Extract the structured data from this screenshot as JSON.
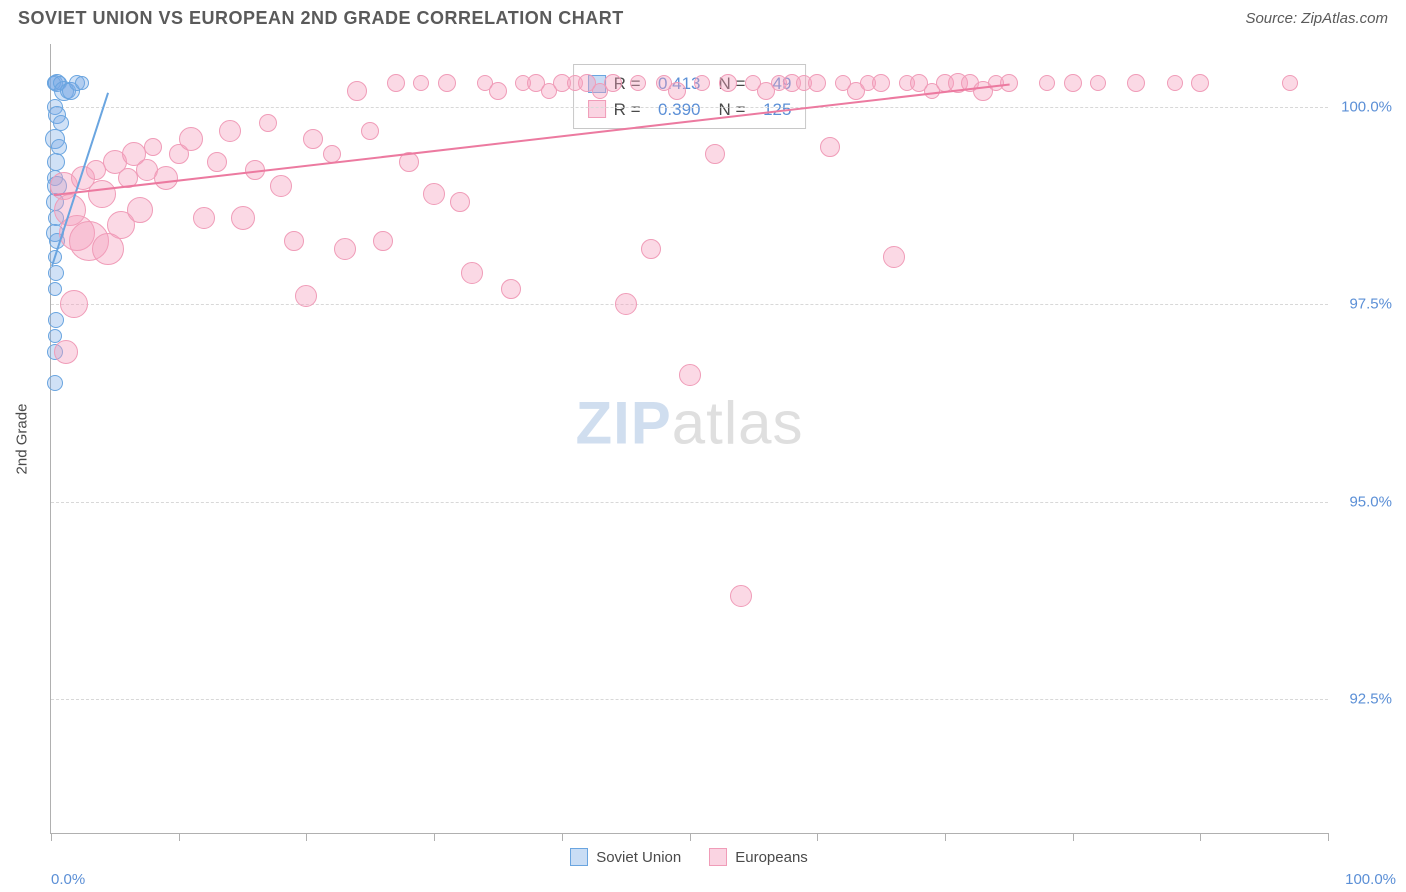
{
  "header": {
    "title": "SOVIET UNION VS EUROPEAN 2ND GRADE CORRELATION CHART",
    "source": "Source: ZipAtlas.com"
  },
  "chart": {
    "type": "scatter",
    "y_axis_label": "2nd Grade",
    "xlim": [
      0,
      100
    ],
    "ylim": [
      90.8,
      100.8
    ],
    "x_end_labels": [
      "0.0%",
      "100.0%"
    ],
    "x_tick_positions": [
      0,
      10,
      20,
      30,
      40,
      50,
      60,
      70,
      80,
      90,
      100
    ],
    "y_ticks": [
      {
        "v": 92.5,
        "label": "92.5%"
      },
      {
        "v": 95.0,
        "label": "95.0%"
      },
      {
        "v": 97.5,
        "label": "97.5%"
      },
      {
        "v": 100.0,
        "label": "100.0%"
      }
    ],
    "background_color": "#ffffff",
    "grid_color": "#d8d8d8",
    "axis_color": "#b0b0b0",
    "tick_label_color": "#5b8fd6",
    "series": [
      {
        "name": "Soviet Union",
        "fill": "rgba(120,170,230,0.35)",
        "stroke": "#6aa5e0",
        "trend_color": "#6aa5e0",
        "trend": {
          "x1": 0.1,
          "y1": 98.0,
          "x2": 4.5,
          "y2": 100.2
        },
        "points": [
          {
            "x": 0.2,
            "y": 100.3,
            "r": 7
          },
          {
            "x": 0.3,
            "y": 100.3,
            "r": 8
          },
          {
            "x": 0.5,
            "y": 100.3,
            "r": 9
          },
          {
            "x": 0.7,
            "y": 100.3,
            "r": 7
          },
          {
            "x": 1.0,
            "y": 100.2,
            "r": 10
          },
          {
            "x": 1.3,
            "y": 100.2,
            "r": 8
          },
          {
            "x": 1.6,
            "y": 100.2,
            "r": 9
          },
          {
            "x": 2.0,
            "y": 100.3,
            "r": 8
          },
          {
            "x": 2.4,
            "y": 100.3,
            "r": 7
          },
          {
            "x": 0.3,
            "y": 100.0,
            "r": 8
          },
          {
            "x": 0.5,
            "y": 99.9,
            "r": 9
          },
          {
            "x": 0.8,
            "y": 99.8,
            "r": 8
          },
          {
            "x": 0.3,
            "y": 99.6,
            "r": 10
          },
          {
            "x": 0.6,
            "y": 99.5,
            "r": 8
          },
          {
            "x": 0.4,
            "y": 99.3,
            "r": 9
          },
          {
            "x": 0.3,
            "y": 99.1,
            "r": 8
          },
          {
            "x": 0.5,
            "y": 99.0,
            "r": 10
          },
          {
            "x": 0.3,
            "y": 98.8,
            "r": 9
          },
          {
            "x": 0.4,
            "y": 98.6,
            "r": 8
          },
          {
            "x": 0.3,
            "y": 98.4,
            "r": 9
          },
          {
            "x": 0.5,
            "y": 98.3,
            "r": 8
          },
          {
            "x": 0.3,
            "y": 98.1,
            "r": 7
          },
          {
            "x": 0.4,
            "y": 97.9,
            "r": 8
          },
          {
            "x": 0.3,
            "y": 97.7,
            "r": 7
          },
          {
            "x": 0.4,
            "y": 97.3,
            "r": 8
          },
          {
            "x": 0.3,
            "y": 97.1,
            "r": 7
          },
          {
            "x": 0.3,
            "y": 96.9,
            "r": 8
          },
          {
            "x": 0.3,
            "y": 96.5,
            "r": 8
          }
        ]
      },
      {
        "name": "Europeans",
        "fill": "rgba(245,160,190,0.4)",
        "stroke": "#f09cb8",
        "trend_color": "#ec7aa0",
        "trend": {
          "x1": 0.2,
          "y1": 98.9,
          "x2": 75,
          "y2": 100.3
        },
        "points": [
          {
            "x": 1.0,
            "y": 99.0,
            "r": 14
          },
          {
            "x": 1.5,
            "y": 98.7,
            "r": 16
          },
          {
            "x": 2.0,
            "y": 98.4,
            "r": 18
          },
          {
            "x": 2.5,
            "y": 99.1,
            "r": 12
          },
          {
            "x": 3.0,
            "y": 98.3,
            "r": 20
          },
          {
            "x": 3.5,
            "y": 99.2,
            "r": 10
          },
          {
            "x": 4.0,
            "y": 98.9,
            "r": 14
          },
          {
            "x": 4.5,
            "y": 98.2,
            "r": 16
          },
          {
            "x": 5.0,
            "y": 99.3,
            "r": 12
          },
          {
            "x": 5.5,
            "y": 98.5,
            "r": 14
          },
          {
            "x": 6.0,
            "y": 99.1,
            "r": 10
          },
          {
            "x": 6.5,
            "y": 99.4,
            "r": 12
          },
          {
            "x": 7.0,
            "y": 98.7,
            "r": 13
          },
          {
            "x": 7.5,
            "y": 99.2,
            "r": 11
          },
          {
            "x": 8.0,
            "y": 99.5,
            "r": 9
          },
          {
            "x": 9.0,
            "y": 99.1,
            "r": 12
          },
          {
            "x": 10.0,
            "y": 99.4,
            "r": 10
          },
          {
            "x": 11.0,
            "y": 99.6,
            "r": 12
          },
          {
            "x": 12.0,
            "y": 98.6,
            "r": 11
          },
          {
            "x": 13.0,
            "y": 99.3,
            "r": 10
          },
          {
            "x": 14.0,
            "y": 99.7,
            "r": 11
          },
          {
            "x": 15.0,
            "y": 98.6,
            "r": 12
          },
          {
            "x": 16.0,
            "y": 99.2,
            "r": 10
          },
          {
            "x": 17.0,
            "y": 99.8,
            "r": 9
          },
          {
            "x": 18.0,
            "y": 99.0,
            "r": 11
          },
          {
            "x": 19.0,
            "y": 98.3,
            "r": 10
          },
          {
            "x": 20.0,
            "y": 97.6,
            "r": 11
          },
          {
            "x": 20.5,
            "y": 99.6,
            "r": 10
          },
          {
            "x": 22.0,
            "y": 99.4,
            "r": 9
          },
          {
            "x": 23.0,
            "y": 98.2,
            "r": 11
          },
          {
            "x": 24.0,
            "y": 100.2,
            "r": 10
          },
          {
            "x": 25.0,
            "y": 99.7,
            "r": 9
          },
          {
            "x": 26.0,
            "y": 98.3,
            "r": 10
          },
          {
            "x": 27.0,
            "y": 100.3,
            "r": 9
          },
          {
            "x": 28.0,
            "y": 99.3,
            "r": 10
          },
          {
            "x": 29.0,
            "y": 100.3,
            "r": 8
          },
          {
            "x": 30.0,
            "y": 98.9,
            "r": 11
          },
          {
            "x": 31.0,
            "y": 100.3,
            "r": 9
          },
          {
            "x": 32.0,
            "y": 98.8,
            "r": 10
          },
          {
            "x": 33.0,
            "y": 97.9,
            "r": 11
          },
          {
            "x": 34.0,
            "y": 100.3,
            "r": 8
          },
          {
            "x": 35.0,
            "y": 100.2,
            "r": 9
          },
          {
            "x": 36.0,
            "y": 97.7,
            "r": 10
          },
          {
            "x": 37.0,
            "y": 100.3,
            "r": 8
          },
          {
            "x": 38.0,
            "y": 100.3,
            "r": 9
          },
          {
            "x": 39.0,
            "y": 100.2,
            "r": 8
          },
          {
            "x": 40.0,
            "y": 100.3,
            "r": 9
          },
          {
            "x": 41.0,
            "y": 100.3,
            "r": 8
          },
          {
            "x": 42.0,
            "y": 100.3,
            "r": 9
          },
          {
            "x": 43.0,
            "y": 100.2,
            "r": 8
          },
          {
            "x": 44.0,
            "y": 100.3,
            "r": 9
          },
          {
            "x": 45.0,
            "y": 97.5,
            "r": 11
          },
          {
            "x": 46.0,
            "y": 100.3,
            "r": 8
          },
          {
            "x": 47.0,
            "y": 98.2,
            "r": 10
          },
          {
            "x": 48.0,
            "y": 100.3,
            "r": 8
          },
          {
            "x": 49.0,
            "y": 100.2,
            "r": 9
          },
          {
            "x": 50.0,
            "y": 96.6,
            "r": 11
          },
          {
            "x": 51.0,
            "y": 100.3,
            "r": 8
          },
          {
            "x": 52.0,
            "y": 99.4,
            "r": 10
          },
          {
            "x": 53.0,
            "y": 100.3,
            "r": 9
          },
          {
            "x": 54.0,
            "y": 93.8,
            "r": 11
          },
          {
            "x": 55.0,
            "y": 100.3,
            "r": 8
          },
          {
            "x": 56.0,
            "y": 100.2,
            "r": 9
          },
          {
            "x": 57.0,
            "y": 100.3,
            "r": 8
          },
          {
            "x": 58.0,
            "y": 100.3,
            "r": 9
          },
          {
            "x": 59.0,
            "y": 100.3,
            "r": 8
          },
          {
            "x": 60.0,
            "y": 100.3,
            "r": 9
          },
          {
            "x": 61.0,
            "y": 99.5,
            "r": 10
          },
          {
            "x": 62.0,
            "y": 100.3,
            "r": 8
          },
          {
            "x": 63.0,
            "y": 100.2,
            "r": 9
          },
          {
            "x": 64.0,
            "y": 100.3,
            "r": 8
          },
          {
            "x": 65.0,
            "y": 100.3,
            "r": 9
          },
          {
            "x": 66.0,
            "y": 98.1,
            "r": 11
          },
          {
            "x": 67.0,
            "y": 100.3,
            "r": 8
          },
          {
            "x": 68.0,
            "y": 100.3,
            "r": 9
          },
          {
            "x": 69.0,
            "y": 100.2,
            "r": 8
          },
          {
            "x": 70.0,
            "y": 100.3,
            "r": 9
          },
          {
            "x": 71.0,
            "y": 100.3,
            "r": 10
          },
          {
            "x": 72.0,
            "y": 100.3,
            "r": 9
          },
          {
            "x": 73.0,
            "y": 100.2,
            "r": 10
          },
          {
            "x": 74.0,
            "y": 100.3,
            "r": 8
          },
          {
            "x": 75.0,
            "y": 100.3,
            "r": 9
          },
          {
            "x": 78.0,
            "y": 100.3,
            "r": 8
          },
          {
            "x": 80.0,
            "y": 100.3,
            "r": 9
          },
          {
            "x": 82.0,
            "y": 100.3,
            "r": 8
          },
          {
            "x": 85.0,
            "y": 100.3,
            "r": 9
          },
          {
            "x": 88.0,
            "y": 100.3,
            "r": 8
          },
          {
            "x": 90.0,
            "y": 100.3,
            "r": 9
          },
          {
            "x": 97.0,
            "y": 100.3,
            "r": 8
          },
          {
            "x": 1.2,
            "y": 96.9,
            "r": 12
          },
          {
            "x": 1.8,
            "y": 97.5,
            "r": 14
          }
        ]
      }
    ],
    "correlation_legend": {
      "rows": [
        {
          "swatch_fill": "rgba(120,170,230,0.4)",
          "swatch_stroke": "#6aa5e0",
          "r_label": "R =",
          "r": "0.413",
          "n_label": "N =",
          "n": "49"
        },
        {
          "swatch_fill": "rgba(245,160,190,0.45)",
          "swatch_stroke": "#f09cb8",
          "r_label": "R =",
          "r": "0.390",
          "n_label": "N =",
          "n": "125"
        }
      ]
    },
    "bottom_legend": [
      {
        "fill": "rgba(120,170,230,0.4)",
        "stroke": "#6aa5e0",
        "label": "Soviet Union"
      },
      {
        "fill": "rgba(245,160,190,0.45)",
        "stroke": "#f09cb8",
        "label": "Europeans"
      }
    ],
    "watermark": {
      "part1": "ZIP",
      "part2": "atlas"
    }
  }
}
